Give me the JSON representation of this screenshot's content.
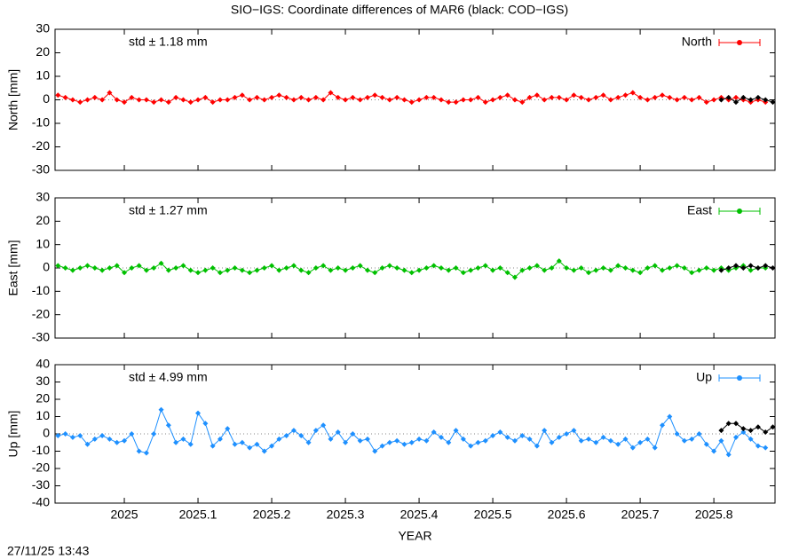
{
  "timestamp": "27/11/25 13:43",
  "chart_data": [
    {
      "type": "line",
      "title": "SIO−IGS: Coordinate differences of MAR6 (black: COD−IGS)",
      "ylabel": "North [mm]",
      "annotation": "std ± 1.18 mm",
      "legend": "upper right",
      "xlim": [
        2024.906,
        2025.883
      ],
      "xticks": [
        2025,
        2025.1,
        2025.2,
        2025.3,
        2025.4,
        2025.5,
        2025.6,
        2025.7,
        2025.8
      ],
      "ylim": [
        -30,
        30
      ],
      "yticks": [
        -30,
        -20,
        -10,
        0,
        10,
        20,
        30
      ],
      "x": [
        2024.91,
        2024.92,
        2024.93,
        2024.94,
        2024.95,
        2024.96,
        2024.97,
        2024.98,
        2024.99,
        2025,
        2025.01,
        2025.02,
        2025.03,
        2025.04,
        2025.05,
        2025.06,
        2025.07,
        2025.08,
        2025.09,
        2025.1,
        2025.11,
        2025.12,
        2025.13,
        2025.14,
        2025.15,
        2025.16,
        2025.17,
        2025.18,
        2025.19,
        2025.2,
        2025.21,
        2025.22,
        2025.23,
        2025.24,
        2025.25,
        2025.26,
        2025.27,
        2025.28,
        2025.29,
        2025.3,
        2025.31,
        2025.32,
        2025.33,
        2025.34,
        2025.35,
        2025.36,
        2025.37,
        2025.38,
        2025.39,
        2025.4,
        2025.41,
        2025.42,
        2025.43,
        2025.44,
        2025.45,
        2025.46,
        2025.47,
        2025.48,
        2025.49,
        2025.5,
        2025.51,
        2025.52,
        2025.53,
        2025.54,
        2025.55,
        2025.56,
        2025.57,
        2025.58,
        2025.59,
        2025.6,
        2025.61,
        2025.62,
        2025.63,
        2025.64,
        2025.65,
        2025.66,
        2025.67,
        2025.68,
        2025.69,
        2025.7,
        2025.71,
        2025.72,
        2025.73,
        2025.74,
        2025.75,
        2025.76,
        2025.77,
        2025.78,
        2025.79,
        2025.8,
        2025.81,
        2025.82,
        2025.83,
        2025.84,
        2025.85,
        2025.86,
        2025.87
      ],
      "series": [
        {
          "name": "North",
          "color": "#ff0000",
          "values": [
            2,
            1,
            0,
            -1,
            0,
            1,
            0,
            3,
            0,
            -1,
            1,
            0,
            0,
            -1,
            0,
            -1,
            1,
            0,
            -1,
            0,
            1,
            -1,
            0,
            0,
            1,
            2,
            0,
            1,
            0,
            1,
            2,
            1,
            0,
            1,
            0,
            1,
            0,
            3,
            1,
            0,
            1,
            0,
            1,
            2,
            1,
            0,
            1,
            0,
            -1,
            0,
            1,
            1,
            0,
            -1,
            -1,
            0,
            0,
            1,
            -1,
            0,
            1,
            2,
            0,
            -1,
            1,
            2,
            0,
            1,
            1,
            0,
            2,
            1,
            0,
            1,
            2,
            0,
            1,
            2,
            3,
            1,
            0,
            1,
            2,
            1,
            0,
            1,
            0,
            1,
            -1,
            0,
            1,
            0,
            1,
            0,
            -1,
            0,
            -1
          ]
        },
        {
          "color": "#000000",
          "x": [
            2025.81,
            2025.82,
            2025.83,
            2025.84,
            2025.85,
            2025.86,
            2025.87,
            2025.88
          ],
          "values": [
            0,
            1,
            -1,
            1,
            0,
            1,
            0,
            -1
          ]
        }
      ]
    },
    {
      "type": "line",
      "ylabel": "East [mm]",
      "annotation": "std ± 1.27 mm",
      "legend": "upper right",
      "xlim": [
        2024.906,
        2025.883
      ],
      "xticks": [
        2025,
        2025.1,
        2025.2,
        2025.3,
        2025.4,
        2025.5,
        2025.6,
        2025.7,
        2025.8
      ],
      "ylim": [
        -30,
        30
      ],
      "yticks": [
        -30,
        -20,
        -10,
        0,
        10,
        20,
        30
      ],
      "x": [
        2024.91,
        2024.92,
        2024.93,
        2024.94,
        2024.95,
        2024.96,
        2024.97,
        2024.98,
        2024.99,
        2025,
        2025.01,
        2025.02,
        2025.03,
        2025.04,
        2025.05,
        2025.06,
        2025.07,
        2025.08,
        2025.09,
        2025.1,
        2025.11,
        2025.12,
        2025.13,
        2025.14,
        2025.15,
        2025.16,
        2025.17,
        2025.18,
        2025.19,
        2025.2,
        2025.21,
        2025.22,
        2025.23,
        2025.24,
        2025.25,
        2025.26,
        2025.27,
        2025.28,
        2025.29,
        2025.3,
        2025.31,
        2025.32,
        2025.33,
        2025.34,
        2025.35,
        2025.36,
        2025.37,
        2025.38,
        2025.39,
        2025.4,
        2025.41,
        2025.42,
        2025.43,
        2025.44,
        2025.45,
        2025.46,
        2025.47,
        2025.48,
        2025.49,
        2025.5,
        2025.51,
        2025.52,
        2025.53,
        2025.54,
        2025.55,
        2025.56,
        2025.57,
        2025.58,
        2025.59,
        2025.6,
        2025.61,
        2025.62,
        2025.63,
        2025.64,
        2025.65,
        2025.66,
        2025.67,
        2025.68,
        2025.69,
        2025.7,
        2025.71,
        2025.72,
        2025.73,
        2025.74,
        2025.75,
        2025.76,
        2025.77,
        2025.78,
        2025.79,
        2025.8,
        2025.81,
        2025.82,
        2025.83,
        2025.84,
        2025.85,
        2025.86,
        2025.87
      ],
      "series": [
        {
          "name": "East",
          "color": "#00c000",
          "values": [
            1,
            0,
            -1,
            0,
            1,
            0,
            -1,
            0,
            1,
            -2,
            0,
            1,
            -1,
            0,
            2,
            -1,
            0,
            1,
            -1,
            -2,
            -1,
            0,
            -2,
            -1,
            0,
            -1,
            -2,
            -1,
            0,
            1,
            -1,
            0,
            1,
            -1,
            -2,
            0,
            1,
            -1,
            0,
            -1,
            0,
            1,
            -1,
            -2,
            0,
            1,
            0,
            -1,
            -2,
            -1,
            0,
            1,
            0,
            -1,
            0,
            -2,
            -1,
            0,
            1,
            -1,
            0,
            -2,
            -4,
            -1,
            0,
            1,
            -1,
            0,
            3,
            0,
            -1,
            0,
            -2,
            -1,
            0,
            -1,
            1,
            0,
            -1,
            -2,
            0,
            1,
            -1,
            0,
            1,
            0,
            -2,
            -1,
            0,
            -1,
            0,
            -1,
            0,
            1,
            -1,
            0,
            0
          ]
        },
        {
          "color": "#000000",
          "x": [
            2025.81,
            2025.82,
            2025.83,
            2025.84,
            2025.85,
            2025.86,
            2025.87,
            2025.88
          ],
          "values": [
            -1,
            0,
            1,
            0,
            1,
            0,
            1,
            0
          ]
        }
      ]
    },
    {
      "type": "line",
      "ylabel": "Up [mm]",
      "xlabel": "YEAR",
      "annotation": "std ± 4.99 mm",
      "legend": "upper right",
      "xlim": [
        2024.906,
        2025.883
      ],
      "xticks": [
        2025,
        2025.1,
        2025.2,
        2025.3,
        2025.4,
        2025.5,
        2025.6,
        2025.7,
        2025.8
      ],
      "ylim": [
        -40,
        40
      ],
      "yticks": [
        -40,
        -30,
        -20,
        -10,
        0,
        10,
        20,
        30,
        40
      ],
      "x": [
        2024.91,
        2024.92,
        2024.93,
        2024.94,
        2024.95,
        2024.96,
        2024.97,
        2024.98,
        2024.99,
        2025,
        2025.01,
        2025.02,
        2025.03,
        2025.04,
        2025.05,
        2025.06,
        2025.07,
        2025.08,
        2025.09,
        2025.1,
        2025.11,
        2025.12,
        2025.13,
        2025.14,
        2025.15,
        2025.16,
        2025.17,
        2025.18,
        2025.19,
        2025.2,
        2025.21,
        2025.22,
        2025.23,
        2025.24,
        2025.25,
        2025.26,
        2025.27,
        2025.28,
        2025.29,
        2025.3,
        2025.31,
        2025.32,
        2025.33,
        2025.34,
        2025.35,
        2025.36,
        2025.37,
        2025.38,
        2025.39,
        2025.4,
        2025.41,
        2025.42,
        2025.43,
        2025.44,
        2025.45,
        2025.46,
        2025.47,
        2025.48,
        2025.49,
        2025.5,
        2025.51,
        2025.52,
        2025.53,
        2025.54,
        2025.55,
        2025.56,
        2025.57,
        2025.58,
        2025.59,
        2025.6,
        2025.61,
        2025.62,
        2025.63,
        2025.64,
        2025.65,
        2025.66,
        2025.67,
        2025.68,
        2025.69,
        2025.7,
        2025.71,
        2025.72,
        2025.73,
        2025.74,
        2025.75,
        2025.76,
        2025.77,
        2025.78,
        2025.79,
        2025.8,
        2025.81,
        2025.82,
        2025.83,
        2025.84,
        2025.85,
        2025.86,
        2025.87
      ],
      "series": [
        {
          "name": "Up",
          "color": "#1e90ff",
          "values": [
            -1,
            0,
            -2,
            -1,
            -6,
            -3,
            -1,
            -3,
            -5,
            -4,
            0,
            -10,
            -11,
            0,
            14,
            5,
            -5,
            -3,
            -6,
            12,
            6,
            -7,
            -3,
            3,
            -6,
            -5,
            -8,
            -6,
            -10,
            -7,
            -3,
            -1,
            2,
            -1,
            -5,
            2,
            5,
            -3,
            1,
            -5,
            0,
            -4,
            -3,
            -10,
            -7,
            -5,
            -4,
            -6,
            -5,
            -3,
            -4,
            1,
            -2,
            -5,
            2,
            -3,
            -7,
            -5,
            -4,
            -1,
            1,
            -2,
            -4,
            -1,
            -3,
            -7,
            2,
            -5,
            -2,
            0,
            2,
            -4,
            -3,
            -5,
            -2,
            -4,
            -6,
            -3,
            -8,
            -5,
            -3,
            -8,
            5,
            10,
            0,
            -4,
            -3,
            0,
            -6,
            -10,
            -4,
            -12,
            -2,
            1,
            -3,
            -7,
            -8
          ]
        },
        {
          "color": "#000000",
          "x": [
            2025.81,
            2025.82,
            2025.83,
            2025.84,
            2025.85,
            2025.86,
            2025.87,
            2025.88
          ],
          "values": [
            2,
            6,
            6,
            3,
            2,
            4,
            1,
            4
          ]
        }
      ]
    }
  ]
}
